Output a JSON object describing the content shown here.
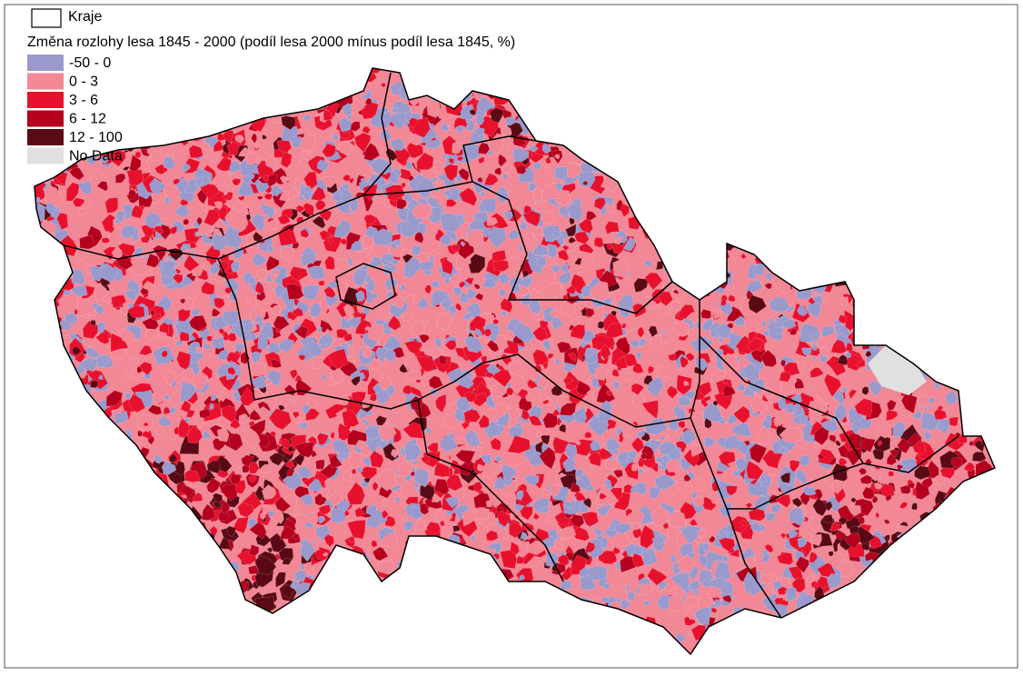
{
  "legend": {
    "boundary_label": "Kraje",
    "title": "Změna rozlohy lesa 1845 - 2000 (podíl lesa 2000 mínus podíl lesa 1845, %)",
    "classes": [
      {
        "label": "-50 - 0",
        "color": "#9999cc"
      },
      {
        "label": "0 - 3",
        "color": "#f28795"
      },
      {
        "label": "3 - 6",
        "color": "#e8112d"
      },
      {
        "label": "6 - 12",
        "color": "#b5001e"
      },
      {
        "label": "12 - 100",
        "color": "#5a0a14"
      },
      {
        "label": "No Data",
        "color": "#e0e0e0"
      }
    ]
  }
}
